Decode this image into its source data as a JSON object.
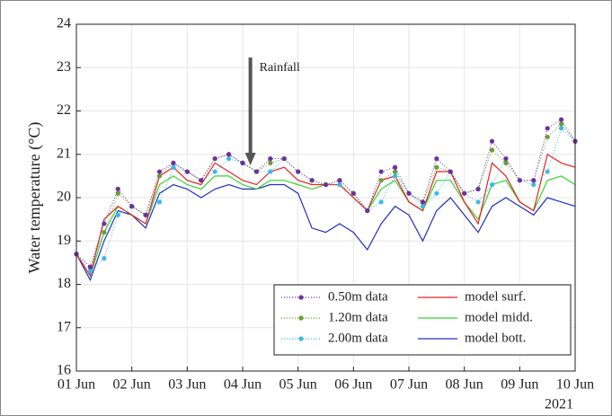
{
  "chart_data": {
    "type": "line",
    "ylabel": "Water temperature (°C)",
    "xlabel": "2021",
    "x": [
      0,
      0.25,
      0.5,
      0.75,
      1,
      1.25,
      1.5,
      1.75,
      2,
      2.25,
      2.5,
      2.75,
      3,
      3.25,
      3.5,
      3.75,
      4,
      4.25,
      4.5,
      4.75,
      5,
      5.25,
      5.5,
      5.75,
      6,
      6.25,
      6.5,
      6.75,
      7,
      7.25,
      7.5,
      7.75,
      8,
      8.25,
      8.5,
      8.75,
      9
    ],
    "xlim": [
      0,
      9
    ],
    "xticks": [
      {
        "value": 0,
        "label": "01 Jun"
      },
      {
        "value": 1,
        "label": "02 Jun"
      },
      {
        "value": 2,
        "label": "03 Jun"
      },
      {
        "value": 3,
        "label": "04 Jun"
      },
      {
        "value": 4,
        "label": "05 Jun"
      },
      {
        "value": 5,
        "label": "06 Jun"
      },
      {
        "value": 6,
        "label": "07 Jun"
      },
      {
        "value": 7,
        "label": "08 Jun"
      },
      {
        "value": 8,
        "label": "09 Jun"
      },
      {
        "value": 9,
        "label": "10 Jun"
      }
    ],
    "ylim": [
      16,
      24
    ],
    "yticks": [
      16,
      17,
      18,
      19,
      20,
      21,
      22,
      23,
      24
    ],
    "grid": true,
    "legend": "lower right",
    "annotation": {
      "text": "Rainfall",
      "x": 3.14
    },
    "series": [
      {
        "name": "0.50m data",
        "color": "#7030a0",
        "style": "markers",
        "values": [
          18.7,
          18.4,
          19.4,
          20.2,
          19.8,
          19.6,
          20.6,
          20.8,
          20.6,
          20.4,
          20.9,
          21.0,
          20.8,
          20.6,
          20.9,
          20.9,
          20.6,
          20.4,
          20.3,
          20.4,
          20.1,
          19.7,
          20.6,
          20.7,
          20.1,
          19.9,
          20.9,
          20.6,
          20.1,
          20.2,
          21.3,
          20.9,
          20.4,
          20.4,
          21.6,
          21.8,
          21.3
        ]
      },
      {
        "name": "1.20m data",
        "color": "#66a030",
        "style": "markers",
        "values": [
          18.7,
          18.4,
          19.2,
          20.1,
          19.8,
          19.6,
          20.5,
          20.8,
          20.6,
          20.4,
          20.9,
          21.0,
          20.8,
          20.6,
          20.8,
          20.9,
          20.6,
          20.4,
          20.3,
          20.4,
          20.1,
          19.7,
          20.4,
          20.6,
          20.1,
          19.9,
          20.7,
          20.6,
          20.1,
          20.2,
          21.1,
          20.8,
          20.4,
          20.4,
          21.4,
          21.7,
          21.3
        ]
      },
      {
        "name": "2.00m data",
        "color": "#3db8ea",
        "style": "markers",
        "values": [
          18.7,
          18.3,
          18.6,
          19.6,
          19.8,
          19.6,
          19.9,
          20.7,
          20.6,
          20.4,
          20.6,
          20.9,
          20.8,
          20.6,
          20.6,
          20.9,
          20.6,
          20.4,
          20.3,
          20.3,
          20.1,
          19.7,
          19.9,
          20.5,
          20.1,
          19.8,
          20.1,
          20.6,
          20.1,
          19.9,
          20.3,
          20.9,
          20.4,
          20.3,
          20.6,
          21.6,
          21.3
        ]
      },
      {
        "name": "model surf.",
        "color": "#e82020",
        "style": "line",
        "values": [
          18.7,
          18.2,
          19.5,
          19.8,
          19.6,
          19.4,
          20.5,
          20.7,
          20.4,
          20.3,
          20.8,
          20.6,
          20.4,
          20.3,
          20.6,
          20.7,
          20.4,
          20.3,
          20.3,
          20.3,
          20.0,
          19.7,
          20.4,
          20.5,
          19.9,
          19.7,
          20.6,
          20.6,
          19.9,
          19.4,
          20.8,
          20.5,
          19.9,
          19.7,
          21.0,
          20.8,
          20.7
        ]
      },
      {
        "name": "model midd.",
        "color": "#33d633",
        "style": "line",
        "values": [
          18.7,
          18.2,
          19.2,
          19.8,
          19.6,
          19.4,
          20.3,
          20.5,
          20.3,
          20.2,
          20.5,
          20.5,
          20.3,
          20.2,
          20.4,
          20.4,
          20.3,
          20.2,
          20.3,
          20.3,
          20.0,
          19.7,
          20.2,
          20.4,
          19.9,
          19.7,
          20.4,
          20.4,
          19.9,
          19.5,
          20.3,
          20.4,
          19.9,
          19.7,
          20.4,
          20.5,
          20.3
        ]
      },
      {
        "name": "model bott.",
        "color": "#2030c0",
        "style": "line",
        "values": [
          18.7,
          18.1,
          19.0,
          19.7,
          19.6,
          19.3,
          20.1,
          20.3,
          20.2,
          20.0,
          20.2,
          20.3,
          20.2,
          20.2,
          20.3,
          20.3,
          20.1,
          19.3,
          19.2,
          19.4,
          19.2,
          18.8,
          19.4,
          19.8,
          19.6,
          19.0,
          19.7,
          20.0,
          19.6,
          19.2,
          19.8,
          20.0,
          19.8,
          19.6,
          20.0,
          19.9,
          19.8
        ]
      }
    ]
  }
}
